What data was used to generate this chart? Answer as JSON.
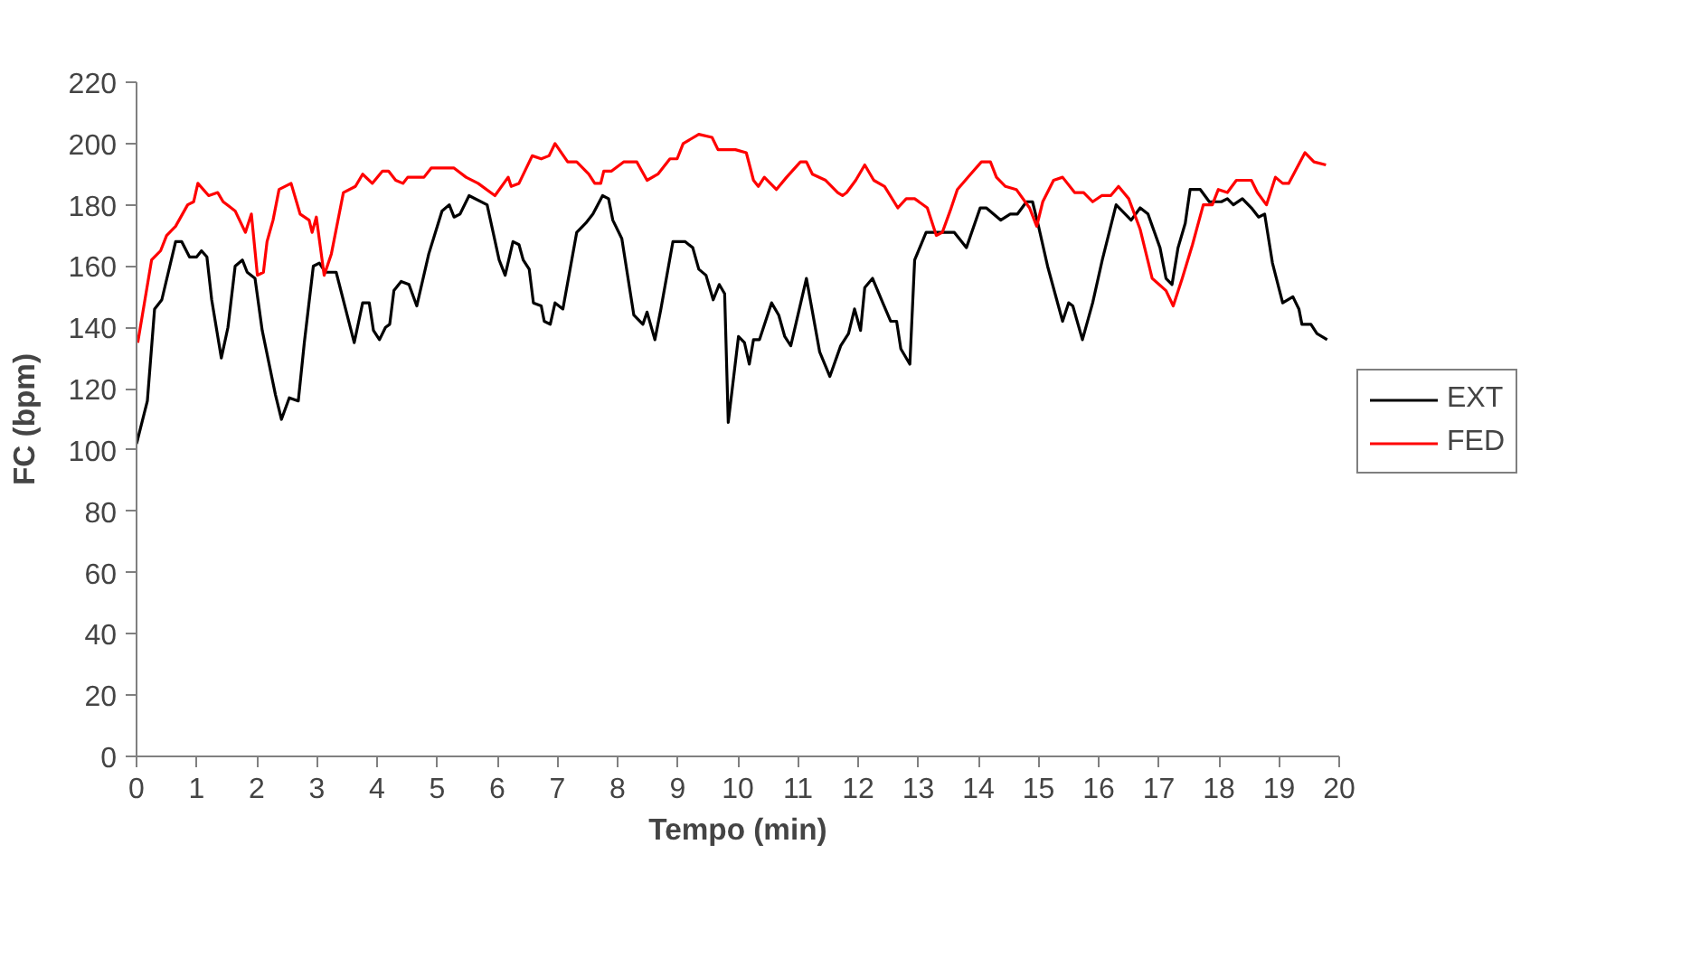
{
  "chart_data": {
    "type": "line",
    "xlabel": "Tempo (min)",
    "ylabel": "FC (bpm)",
    "xlim": [
      0,
      20
    ],
    "xticks": [
      0,
      1,
      2,
      3,
      4,
      5,
      6,
      7,
      8,
      9,
      10,
      11,
      12,
      13,
      14,
      15,
      16,
      17,
      18,
      19,
      20
    ],
    "ylim": [
      0,
      220
    ],
    "yticks": [
      0,
      20,
      40,
      60,
      80,
      100,
      120,
      140,
      160,
      180,
      200,
      220
    ],
    "grid": false,
    "legend": "right",
    "marker": "none",
    "line_style": "solid",
    "series": [
      {
        "name": "EXT",
        "color": "#000000",
        "x": [
          0,
          0.18,
          0.3,
          0.42,
          0.65,
          0.75,
          0.88,
          1.0,
          1.08,
          1.17,
          1.25,
          1.41,
          1.52,
          1.64,
          1.76,
          1.84,
          1.97,
          2.09,
          2.31,
          2.41,
          2.54,
          2.69,
          2.79,
          2.94,
          3.04,
          3.14,
          3.32,
          3.62,
          3.76,
          3.87,
          3.94,
          4.04,
          4.14,
          4.21,
          4.28,
          4.4,
          4.53,
          4.66,
          4.86,
          5.08,
          5.2,
          5.28,
          5.38,
          5.53,
          5.83,
          6.03,
          6.13,
          6.26,
          6.36,
          6.43,
          6.53,
          6.6,
          6.73,
          6.78,
          6.88,
          6.96,
          7.09,
          7.32,
          7.47,
          7.59,
          7.75,
          7.85,
          7.92,
          8.07,
          8.27,
          8.42,
          8.49,
          8.62,
          8.72,
          8.92,
          9.12,
          9.25,
          9.35,
          9.47,
          9.59,
          9.69,
          9.78,
          9.84,
          10.01,
          10.11,
          10.19,
          10.26,
          10.36,
          10.56,
          10.68,
          10.78,
          10.88,
          11.14,
          11.36,
          11.53,
          11.71,
          11.84,
          11.94,
          12.04,
          12.11,
          12.24,
          12.41,
          12.54,
          12.64,
          12.71,
          12.86,
          12.94,
          13.13,
          13.6,
          13.8,
          14.03,
          14.13,
          14.37,
          14.53,
          14.65,
          14.8,
          14.9,
          15.0,
          15.15,
          15.4,
          15.5,
          15.57,
          15.73,
          15.9,
          16.06,
          16.29,
          16.54,
          16.69,
          16.82,
          17.02,
          17.12,
          17.22,
          17.32,
          17.44,
          17.52,
          17.69,
          17.84,
          18.04,
          18.14,
          18.24,
          18.39,
          18.54,
          18.66,
          18.76,
          18.89,
          19.06,
          19.23,
          19.33,
          19.38,
          19.53,
          19.63,
          19.8
        ],
        "values": [
          102,
          116,
          146,
          149,
          168,
          168,
          163,
          163,
          165,
          163,
          149,
          130,
          140,
          160,
          162,
          158,
          156,
          139,
          118,
          110,
          117,
          116,
          135,
          160,
          161,
          158,
          158,
          135,
          148,
          148,
          139,
          136,
          140,
          141,
          152,
          155,
          154,
          147,
          164,
          178,
          180,
          176,
          177,
          183,
          180,
          162,
          157,
          168,
          167,
          162,
          159,
          148,
          147,
          142,
          141,
          148,
          146,
          171,
          174,
          177,
          183,
          182,
          175,
          169,
          144,
          141,
          145,
          136,
          146,
          168,
          168,
          166,
          159,
          157,
          149,
          154,
          151,
          109,
          137,
          135,
          128,
          136,
          136,
          148,
          144,
          137,
          134,
          156,
          132,
          124,
          134,
          138,
          146,
          139,
          153,
          156,
          148,
          142,
          142,
          133,
          128,
          162,
          171,
          171,
          166,
          179,
          179,
          175,
          177,
          177,
          181,
          181,
          173,
          160,
          142,
          148,
          147,
          136,
          148,
          162,
          180,
          175,
          179,
          177,
          166,
          156,
          154,
          166,
          174,
          185,
          185,
          181,
          181,
          182,
          180,
          182,
          179,
          176,
          177,
          161,
          148,
          150,
          146,
          141,
          141,
          138,
          136
        ]
      },
      {
        "name": "FED",
        "color": "#ff0000",
        "x": [
          0.02,
          0.25,
          0.4,
          0.5,
          0.65,
          0.85,
          0.95,
          1.02,
          1.2,
          1.35,
          1.44,
          1.64,
          1.81,
          1.91,
          2.01,
          2.11,
          2.17,
          2.27,
          2.37,
          2.57,
          2.72,
          2.87,
          2.92,
          2.99,
          3.12,
          3.24,
          3.44,
          3.64,
          3.76,
          3.92,
          4.09,
          4.19,
          4.31,
          4.43,
          4.51,
          4.78,
          4.9,
          5.28,
          5.48,
          5.68,
          5.96,
          6.18,
          6.23,
          6.36,
          6.58,
          6.73,
          6.86,
          6.96,
          7.17,
          7.32,
          7.52,
          7.62,
          7.72,
          7.77,
          7.9,
          8.1,
          8.32,
          8.49,
          8.67,
          8.87,
          8.99,
          9.09,
          9.35,
          9.57,
          9.67,
          9.96,
          10.14,
          10.26,
          10.34,
          10.44,
          10.64,
          10.81,
          11.04,
          11.14,
          11.24,
          11.46,
          11.66,
          11.74,
          11.81,
          11.96,
          12.11,
          12.26,
          12.44,
          12.66,
          12.8,
          12.94,
          13.15,
          13.3,
          13.4,
          13.53,
          13.65,
          13.87,
          14.05,
          14.2,
          14.3,
          14.45,
          14.63,
          14.85,
          14.97,
          15.07,
          15.25,
          15.4,
          15.6,
          15.75,
          15.9,
          16.05,
          16.2,
          16.33,
          16.5,
          16.69,
          16.89,
          17.12,
          17.24,
          17.39,
          17.56,
          17.74,
          17.89,
          17.99,
          18.14,
          18.29,
          18.54,
          18.64,
          18.79,
          18.94,
          19.06,
          19.16,
          19.43,
          19.58,
          19.78
        ],
        "values": [
          135,
          162,
          165,
          170,
          173,
          180,
          181,
          187,
          183,
          184,
          181,
          178,
          171,
          177,
          157,
          158,
          168,
          175,
          185,
          187,
          177,
          175,
          171,
          176,
          157,
          164,
          184,
          186,
          190,
          187,
          191,
          191,
          188,
          187,
          189,
          189,
          192,
          192,
          189,
          187,
          183,
          189,
          186,
          187,
          196,
          195,
          196,
          200,
          194,
          194,
          190,
          187,
          187,
          191,
          191,
          194,
          194,
          188,
          190,
          195,
          195,
          200,
          203,
          202,
          198,
          198,
          197,
          188,
          186,
          189,
          185,
          189,
          194,
          194,
          190,
          188,
          184,
          183,
          184,
          188,
          193,
          188,
          186,
          179,
          182,
          182,
          179,
          170,
          171,
          178,
          185,
          190,
          194,
          194,
          189,
          186,
          185,
          179,
          173,
          181,
          188,
          189,
          184,
          184,
          181,
          183,
          183,
          186,
          182,
          172,
          156,
          152,
          147,
          156,
          167,
          180,
          180,
          185,
          184,
          188,
          188,
          184,
          180,
          189,
          187,
          187,
          197,
          194,
          193
        ]
      }
    ]
  }
}
